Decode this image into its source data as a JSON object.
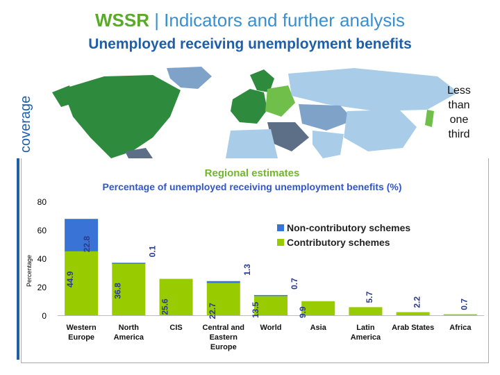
{
  "header": {
    "brand": "WSSR",
    "separator": " | ",
    "title_rest": "Indicators and further analysis",
    "subtitle": "Unemployed receiving unemployment benefits",
    "side_label": "coverage"
  },
  "map": {
    "note_lines": [
      "Less",
      "than",
      "one",
      "third"
    ],
    "colors": {
      "ocean": "#ffffff",
      "high": "#2e8b3e",
      "mid": "#6fbf4a",
      "low": "#a9cce8",
      "lower": "#7fa3c8",
      "nodata": "#5d6f86"
    }
  },
  "colors": {
    "non_contributory": "#3a73d6",
    "contributory": "#99cc00",
    "heading": "#72b62a",
    "subheading": "#3355cc"
  },
  "chart_data": {
    "type": "bar",
    "stacked": true,
    "title": "Regional estimates",
    "subtitle": "Percentage of unemployed receiving unemployment benefits (%)",
    "ylabel": "Percentage",
    "ylim": [
      0,
      80
    ],
    "yticks": [
      0,
      20,
      40,
      60,
      80
    ],
    "categories": [
      "Western Europe",
      "North America",
      "CIS",
      "Central and Eastern Europe",
      "World",
      "Asia",
      "Latin America",
      "Arab States",
      "Africa"
    ],
    "series": [
      {
        "name": "Contributory schemes",
        "values": [
          44.9,
          36.8,
          25.6,
          22.7,
          13.5,
          9.9,
          5.7,
          2.2,
          0.7
        ]
      },
      {
        "name": "Non-contributory schemes",
        "values": [
          22.8,
          0.1,
          0,
          1.3,
          0.7,
          0,
          0,
          0,
          0
        ]
      }
    ],
    "segment_labels": [
      {
        "category": "Western Europe",
        "contributory": "44.9",
        "non_contributory": "22.8"
      },
      {
        "category": "North America",
        "contributory": "36.8",
        "non_contributory": "0.1"
      },
      {
        "category": "CIS",
        "contributory": "25.6",
        "non_contributory": ""
      },
      {
        "category": "Central and Eastern Europe",
        "contributory": "22.7",
        "non_contributory": "1.3"
      },
      {
        "category": "World",
        "contributory": "13.5",
        "non_contributory": "0.7"
      },
      {
        "category": "Asia",
        "contributory": "9.9",
        "non_contributory": ""
      },
      {
        "category": "Latin America",
        "contributory": "5.7",
        "non_contributory": ""
      },
      {
        "category": "Arab States",
        "contributory": "2.2",
        "non_contributory": ""
      },
      {
        "category": "Africa",
        "contributory": "0.7",
        "non_contributory": ""
      }
    ],
    "legend_position": "right",
    "grid": false
  }
}
